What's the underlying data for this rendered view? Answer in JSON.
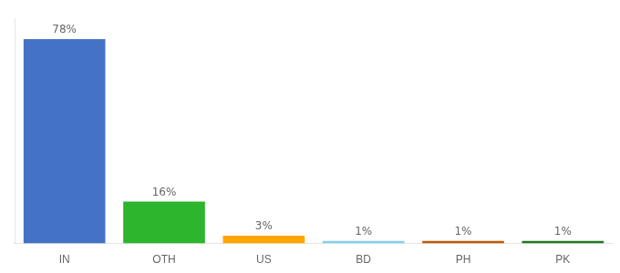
{
  "chart_data": {
    "type": "bar",
    "categories": [
      "IN",
      "OTH",
      "US",
      "BD",
      "PH",
      "PK"
    ],
    "values": [
      78,
      16,
      3,
      1,
      1,
      1
    ],
    "value_labels": [
      "78%",
      "16%",
      "3%",
      "1%",
      "1%",
      "1%"
    ],
    "colors": [
      "#4472c4",
      "#2db52d",
      "#ffa500",
      "#87ceeb",
      "#c0580a",
      "#217821"
    ],
    "ylim": [
      0,
      86
    ],
    "grid": false,
    "data_labels": true,
    "tick_labels": "x"
  }
}
